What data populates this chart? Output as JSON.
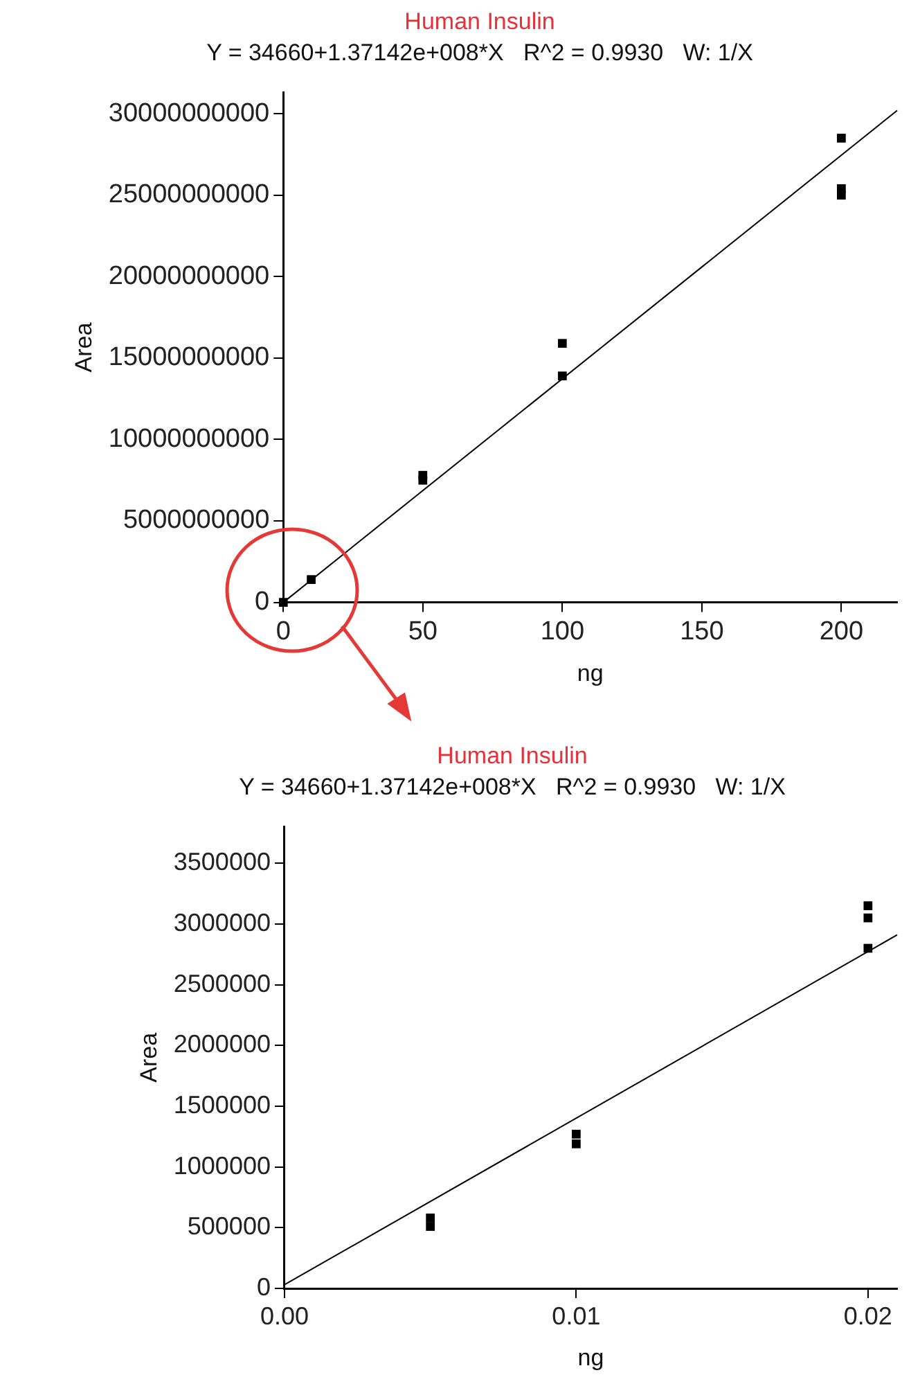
{
  "chart_data": [
    {
      "type": "scatter",
      "title": "Human Insulin",
      "subtitle": "Y = 34660+1.37142e+008*X   R^2 = 0.9930   W: 1/X",
      "xlabel": "ng",
      "ylabel": "Area",
      "series": [
        {
          "type": "scatter",
          "color": "#000000",
          "marker": "square",
          "x": [
            0,
            10,
            50,
            50,
            100,
            100,
            200,
            200,
            200
          ],
          "values": [
            0,
            1400000000,
            7500000000,
            7800000000,
            15900000000,
            13900000000,
            28500000000,
            25400000000,
            25000000000
          ]
        },
        {
          "type": "line",
          "color": "#000000",
          "marker": "none",
          "x": [
            0,
            220
          ],
          "values": [
            0,
            30200000000
          ]
        }
      ],
      "xlim": [
        0,
        220
      ],
      "xticks": [
        0,
        50,
        100,
        150,
        200
      ],
      "ylim": [
        0,
        31300000000
      ],
      "yticks": [
        0,
        5000000000,
        10000000000,
        15000000000,
        20000000000,
        25000000000,
        30000000000
      ],
      "grid": false,
      "legend": false
    },
    {
      "type": "scatter",
      "title": "Human Insulin",
      "subtitle": "Y = 34660+1.37142e+008*X   R^2 = 0.9930   W: 1/X",
      "xlabel": "ng",
      "ylabel": "Area",
      "series": [
        {
          "type": "scatter",
          "color": "#000000",
          "marker": "square",
          "x": [
            0.005,
            0.005,
            0.01,
            0.01,
            0.02,
            0.02,
            0.02
          ],
          "values": [
            580000,
            510000,
            1270000,
            1190000,
            3150000,
            3050000,
            2800000
          ]
        },
        {
          "type": "line",
          "color": "#000000",
          "marker": "none",
          "x": [
            0,
            0.021
          ],
          "values": [
            30000,
            2910000
          ]
        }
      ],
      "xlim": [
        0,
        0.021
      ],
      "xticks": [
        {
          "value": 0,
          "label": "0.00"
        },
        {
          "value": 0.01,
          "label": "0.01"
        },
        {
          "value": 0.02,
          "label": "0.02"
        }
      ],
      "ylim": [
        0,
        3800000
      ],
      "yticks": [
        0,
        500000,
        1000000,
        1500000,
        2000000,
        2500000,
        3000000,
        3500000
      ],
      "grid": false,
      "legend": false
    }
  ]
}
